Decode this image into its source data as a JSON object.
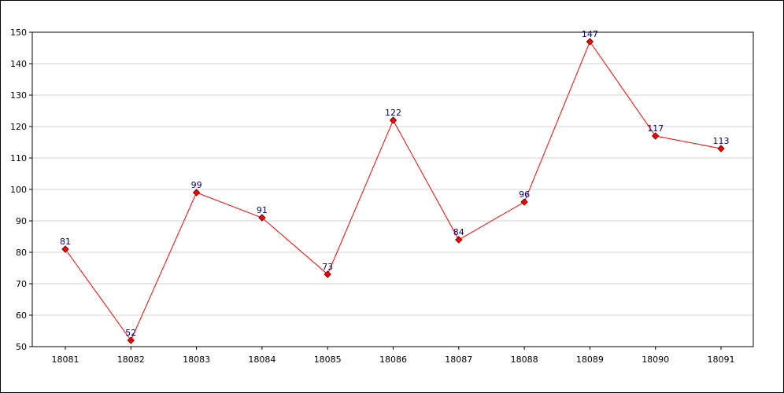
{
  "chart_data": {
    "type": "line",
    "categories": [
      "18081",
      "18082",
      "18083",
      "18084",
      "18085",
      "18086",
      "18087",
      "18088",
      "18089",
      "18090",
      "18091"
    ],
    "values": [
      81,
      52,
      99,
      91,
      73,
      122,
      84,
      96,
      147,
      117,
      113
    ],
    "data_labels": [
      "81",
      "52",
      "99",
      "91",
      "73",
      "122",
      "84",
      "96",
      "147",
      "117",
      "113"
    ],
    "y_ticks": [
      "50",
      "60",
      "70",
      "80",
      "90",
      "100",
      "110",
      "120",
      "130",
      "140",
      "150"
    ],
    "ylim": [
      50,
      150
    ],
    "title": "",
    "xlabel": "",
    "ylabel": "",
    "grid": "horizontal",
    "legend": "none",
    "colors": {
      "line": "#ff0000",
      "marker_fill": "#ff0000",
      "marker_stroke": "#800000",
      "data_label": "#000080",
      "grid": "#d3d3d3",
      "axis": "#000000"
    }
  }
}
